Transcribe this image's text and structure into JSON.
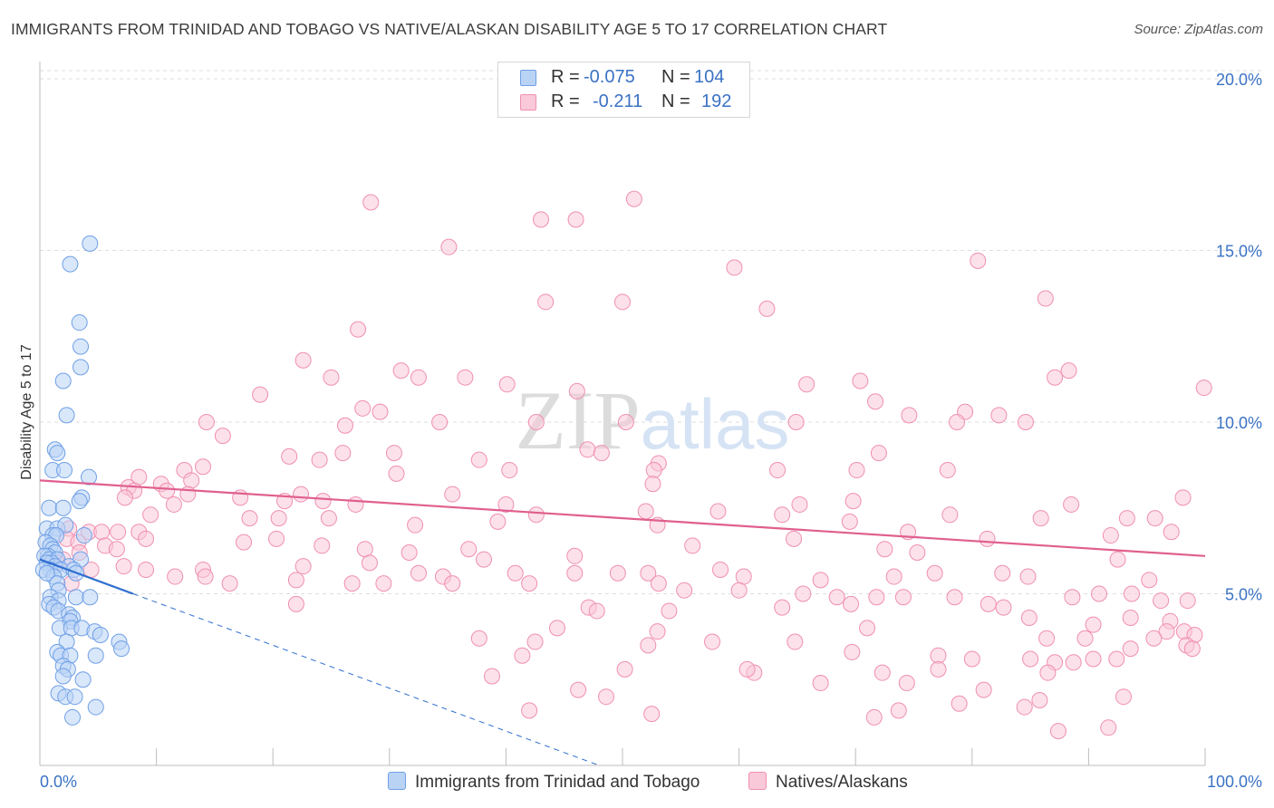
{
  "header": {
    "title": "IMMIGRANTS FROM TRINIDAD AND TOBAGO VS NATIVE/ALASKAN DISABILITY AGE 5 TO 17 CORRELATION CHART",
    "source": "Source: ZipAtlas.com"
  },
  "watermark": "ZIPatlas",
  "legend": {
    "rows": [
      {
        "r_label": "R =",
        "r_value": "-0.075",
        "n_label": "N =",
        "n_value": "104"
      },
      {
        "r_label": "R =",
        "r_value": "-0.211",
        "n_label": "N =",
        "n_value": "192"
      }
    ]
  },
  "bottom_legend": {
    "series1": "Immigrants from Trinidad and Tobago",
    "series2": "Natives/Alaskans"
  },
  "colors": {
    "blue": "#6fa0e6",
    "blue_fill": "#b9d3f5",
    "blue_line": "#2f6fd0",
    "pink": "#f08fb0",
    "pink_fill": "#f9c9d9",
    "pink_line": "#e05f8e",
    "tick_text": "#3a72c4",
    "grid": "#dedede"
  },
  "chart_data": {
    "type": "scatter",
    "title": "IMMIGRANTS FROM TRINIDAD AND TOBAGO VS NATIVE/ALASKAN DISABILITY AGE 5 TO 17 CORRELATION CHART",
    "xlabel": "",
    "ylabel": "Disability Age 5 to 17",
    "xlim": [
      0,
      100
    ],
    "ylim": [
      0,
      20.5
    ],
    "x_tick_labels": [
      "0.0%",
      "100.0%"
    ],
    "y_ticks": [
      5,
      10,
      15,
      20
    ],
    "y_tick_labels": [
      "5.0%",
      "10.0%",
      "15.0%",
      "20.0%"
    ],
    "grid": true,
    "legend_position": "top-center",
    "series": [
      {
        "name": "Immigrants from Trinidad and Tobago",
        "color": "#6fa0e6",
        "r": -0.075,
        "n": 104,
        "trend": {
          "x0": 0,
          "y0": 6.0,
          "x1": 8,
          "y1": 5.0,
          "dashed_to_x": 48,
          "dashed_to_y": 0.0
        },
        "points": [
          [
            4.3,
            15.2
          ],
          [
            2.6,
            14.6
          ],
          [
            3.4,
            12.9
          ],
          [
            3.5,
            12.2
          ],
          [
            3.5,
            11.6
          ],
          [
            2.0,
            11.2
          ],
          [
            2.3,
            10.2
          ],
          [
            1.3,
            9.2
          ],
          [
            1.5,
            9.1
          ],
          [
            1.1,
            8.6
          ],
          [
            2.1,
            8.6
          ],
          [
            4.2,
            8.4
          ],
          [
            3.6,
            7.8
          ],
          [
            3.4,
            7.7
          ],
          [
            0.8,
            7.5
          ],
          [
            2.0,
            7.5
          ],
          [
            0.6,
            6.9
          ],
          [
            1.5,
            6.9
          ],
          [
            2.2,
            7.0
          ],
          [
            1.1,
            6.7
          ],
          [
            1.4,
            6.7
          ],
          [
            3.8,
            6.7
          ],
          [
            0.5,
            6.5
          ],
          [
            0.9,
            6.4
          ],
          [
            1.1,
            6.3
          ],
          [
            1.3,
            6.2
          ],
          [
            0.7,
            6.1
          ],
          [
            0.4,
            6.1
          ],
          [
            0.8,
            6.0
          ],
          [
            1.5,
            6.0
          ],
          [
            3.5,
            6.0
          ],
          [
            1.0,
            5.9
          ],
          [
            0.6,
            5.9
          ],
          [
            2.5,
            5.8
          ],
          [
            1.3,
            5.8
          ],
          [
            0.9,
            5.7
          ],
          [
            0.3,
            5.7
          ],
          [
            1.8,
            5.7
          ],
          [
            2.9,
            5.7
          ],
          [
            3.1,
            5.6
          ],
          [
            1.2,
            5.5
          ],
          [
            0.6,
            5.6
          ],
          [
            1.5,
            5.3
          ],
          [
            1.6,
            5.1
          ],
          [
            0.9,
            4.9
          ],
          [
            3.1,
            4.9
          ],
          [
            4.3,
            4.9
          ],
          [
            1.6,
            4.8
          ],
          [
            0.8,
            4.7
          ],
          [
            1.2,
            4.6
          ],
          [
            1.6,
            4.5
          ],
          [
            2.5,
            4.4
          ],
          [
            2.8,
            4.3
          ],
          [
            2.6,
            4.2
          ],
          [
            1.7,
            4.0
          ],
          [
            2.7,
            4.0
          ],
          [
            3.6,
            4.0
          ],
          [
            4.7,
            3.9
          ],
          [
            5.2,
            3.8
          ],
          [
            2.3,
            3.6
          ],
          [
            6.8,
            3.6
          ],
          [
            7.0,
            3.4
          ],
          [
            1.5,
            3.3
          ],
          [
            1.8,
            3.2
          ],
          [
            2.6,
            3.2
          ],
          [
            4.8,
            3.2
          ],
          [
            2.0,
            2.9
          ],
          [
            2.4,
            2.8
          ],
          [
            2.0,
            2.6
          ],
          [
            3.7,
            2.5
          ],
          [
            1.6,
            2.1
          ],
          [
            2.2,
            2.0
          ],
          [
            3.0,
            2.0
          ],
          [
            4.8,
            1.7
          ],
          [
            2.8,
            1.4
          ]
        ]
      },
      {
        "name": "Natives/Alaskans",
        "color": "#f08fb0",
        "r": -0.211,
        "n": 192,
        "trend": {
          "x0": 0,
          "y0": 8.3,
          "x1": 100,
          "y1": 6.1
        },
        "points": [
          [
            28.4,
            16.4
          ],
          [
            51.0,
            16.5
          ],
          [
            43.0,
            15.9
          ],
          [
            46.0,
            15.9
          ],
          [
            35.1,
            15.1
          ],
          [
            59.6,
            14.5
          ],
          [
            80.5,
            14.7
          ],
          [
            43.4,
            13.5
          ],
          [
            50.0,
            13.5
          ],
          [
            86.3,
            13.6
          ],
          [
            62.4,
            13.3
          ],
          [
            27.3,
            12.7
          ],
          [
            22.6,
            11.8
          ],
          [
            31.0,
            11.5
          ],
          [
            25.0,
            11.3
          ],
          [
            32.5,
            11.3
          ],
          [
            36.5,
            11.3
          ],
          [
            40.1,
            11.1
          ],
          [
            65.8,
            11.1
          ],
          [
            70.4,
            11.2
          ],
          [
            88.3,
            11.5
          ],
          [
            87.1,
            11.3
          ],
          [
            99.9,
            11.0
          ],
          [
            46.1,
            10.9
          ],
          [
            18.9,
            10.8
          ],
          [
            71.7,
            10.6
          ],
          [
            27.7,
            10.4
          ],
          [
            29.2,
            10.3
          ],
          [
            74.6,
            10.2
          ],
          [
            79.4,
            10.3
          ],
          [
            82.3,
            10.2
          ],
          [
            14.3,
            10.0
          ],
          [
            26.2,
            9.9
          ],
          [
            34.3,
            10.0
          ],
          [
            42.6,
            10.0
          ],
          [
            50.3,
            10.0
          ],
          [
            64.9,
            10.0
          ],
          [
            78.7,
            10.0
          ],
          [
            84.6,
            10.0
          ],
          [
            15.7,
            9.6
          ],
          [
            47.0,
            9.2
          ],
          [
            48.2,
            9.1
          ],
          [
            26.0,
            9.1
          ],
          [
            30.4,
            9.1
          ],
          [
            72.0,
            9.1
          ],
          [
            21.4,
            9.0
          ],
          [
            24.0,
            8.9
          ],
          [
            37.7,
            8.9
          ],
          [
            53.1,
            8.8
          ],
          [
            14.0,
            8.7
          ],
          [
            12.4,
            8.6
          ],
          [
            30.6,
            8.5
          ],
          [
            40.3,
            8.6
          ],
          [
            52.7,
            8.6
          ],
          [
            63.3,
            8.6
          ],
          [
            70.1,
            8.6
          ],
          [
            77.9,
            8.6
          ],
          [
            8.5,
            8.4
          ],
          [
            10.4,
            8.2
          ],
          [
            13.0,
            8.3
          ],
          [
            7.6,
            8.1
          ],
          [
            8.1,
            8.0
          ],
          [
            10.9,
            8.0
          ],
          [
            12.7,
            7.9
          ],
          [
            22.4,
            7.9
          ],
          [
            35.4,
            7.9
          ],
          [
            52.6,
            8.2
          ],
          [
            7.3,
            7.8
          ],
          [
            17.2,
            7.8
          ],
          [
            11.5,
            7.6
          ],
          [
            21.0,
            7.7
          ],
          [
            24.3,
            7.7
          ],
          [
            27.1,
            7.6
          ],
          [
            40.0,
            7.6
          ],
          [
            52.0,
            7.4
          ],
          [
            58.2,
            7.4
          ],
          [
            65.2,
            7.6
          ],
          [
            69.8,
            7.7
          ],
          [
            88.5,
            7.6
          ],
          [
            98.1,
            7.8
          ],
          [
            9.5,
            7.3
          ],
          [
            18.0,
            7.2
          ],
          [
            20.5,
            7.2
          ],
          [
            24.8,
            7.2
          ],
          [
            42.6,
            7.3
          ],
          [
            63.7,
            7.3
          ],
          [
            69.5,
            7.1
          ],
          [
            78.1,
            7.3
          ],
          [
            85.9,
            7.2
          ],
          [
            93.3,
            7.2
          ],
          [
            95.7,
            7.2
          ],
          [
            32.2,
            7.0
          ],
          [
            39.3,
            7.1
          ],
          [
            53.0,
            7.0
          ],
          [
            74.5,
            6.8
          ],
          [
            64.7,
            6.6
          ],
          [
            81.3,
            6.6
          ],
          [
            91.9,
            6.7
          ],
          [
            97.1,
            6.8
          ],
          [
            2.5,
            6.9
          ],
          [
            4.2,
            6.8
          ],
          [
            5.3,
            6.8
          ],
          [
            6.7,
            6.8
          ],
          [
            8.5,
            6.8
          ],
          [
            9.1,
            6.6
          ],
          [
            2.3,
            6.6
          ],
          [
            3.3,
            6.5
          ],
          [
            5.6,
            6.4
          ],
          [
            6.6,
            6.3
          ],
          [
            17.5,
            6.5
          ],
          [
            20.3,
            6.6
          ],
          [
            24.2,
            6.4
          ],
          [
            27.9,
            6.3
          ],
          [
            31.7,
            6.2
          ],
          [
            36.8,
            6.3
          ],
          [
            45.9,
            6.1
          ],
          [
            38.1,
            6.0
          ],
          [
            56.0,
            6.4
          ],
          [
            72.5,
            6.3
          ],
          [
            75.3,
            6.2
          ],
          [
            92.5,
            6.0
          ],
          [
            3.4,
            6.2
          ],
          [
            2.0,
            6.0
          ],
          [
            1.5,
            5.9
          ],
          [
            4.4,
            5.7
          ],
          [
            7.2,
            5.8
          ],
          [
            9.1,
            5.7
          ],
          [
            14.0,
            5.7
          ],
          [
            22.6,
            5.8
          ],
          [
            28.3,
            5.9
          ],
          [
            32.5,
            5.6
          ],
          [
            34.6,
            5.5
          ],
          [
            40.8,
            5.6
          ],
          [
            45.9,
            5.6
          ],
          [
            49.6,
            5.6
          ],
          [
            52.2,
            5.6
          ],
          [
            58.4,
            5.7
          ],
          [
            60.4,
            5.5
          ],
          [
            67.0,
            5.4
          ],
          [
            73.3,
            5.5
          ],
          [
            76.8,
            5.6
          ],
          [
            82.6,
            5.6
          ],
          [
            84.8,
            5.5
          ],
          [
            95.2,
            5.4
          ],
          [
            11.6,
            5.5
          ],
          [
            14.2,
            5.5
          ],
          [
            2.7,
            5.3
          ],
          [
            16.3,
            5.3
          ],
          [
            22.0,
            5.4
          ],
          [
            29.5,
            5.3
          ],
          [
            26.8,
            5.3
          ],
          [
            35.4,
            5.3
          ],
          [
            42.0,
            5.3
          ],
          [
            53.1,
            5.3
          ],
          [
            55.3,
            5.1
          ],
          [
            60.0,
            5.1
          ],
          [
            65.5,
            5.0
          ],
          [
            68.4,
            4.9
          ],
          [
            71.8,
            4.9
          ],
          [
            74.1,
            4.9
          ],
          [
            78.5,
            4.9
          ],
          [
            81.4,
            4.7
          ],
          [
            88.6,
            4.9
          ],
          [
            90.9,
            5.0
          ],
          [
            93.7,
            5.0
          ],
          [
            96.2,
            4.8
          ],
          [
            98.5,
            4.8
          ],
          [
            22.0,
            4.7
          ],
          [
            47.1,
            4.6
          ],
          [
            54.0,
            4.5
          ],
          [
            63.7,
            4.6
          ],
          [
            69.6,
            4.7
          ],
          [
            82.7,
            4.6
          ],
          [
            84.9,
            4.3
          ],
          [
            93.6,
            4.3
          ],
          [
            97.0,
            4.2
          ],
          [
            90.4,
            4.1
          ],
          [
            53.0,
            3.9
          ],
          [
            71.0,
            4.0
          ],
          [
            86.4,
            3.7
          ],
          [
            89.7,
            3.7
          ],
          [
            96.7,
            3.9
          ],
          [
            98.2,
            3.9
          ],
          [
            99.1,
            3.8
          ],
          [
            44.4,
            4.0
          ],
          [
            47.8,
            4.5
          ],
          [
            37.7,
            3.7
          ],
          [
            42.5,
            3.6
          ],
          [
            52.2,
            3.5
          ],
          [
            57.7,
            3.6
          ],
          [
            64.8,
            3.6
          ],
          [
            69.7,
            3.3
          ],
          [
            77.1,
            3.2
          ],
          [
            80.0,
            3.1
          ],
          [
            85.0,
            3.1
          ],
          [
            87.1,
            3.0
          ],
          [
            90.4,
            3.1
          ],
          [
            93.6,
            3.4
          ],
          [
            95.6,
            3.7
          ],
          [
            98.4,
            3.5
          ],
          [
            41.4,
            3.2
          ],
          [
            38.8,
            2.6
          ],
          [
            50.2,
            2.8
          ],
          [
            61.3,
            2.7
          ],
          [
            72.3,
            2.7
          ],
          [
            77.1,
            2.8
          ],
          [
            86.5,
            2.7
          ],
          [
            88.7,
            3.0
          ],
          [
            92.4,
            3.1
          ],
          [
            98.9,
            3.4
          ],
          [
            42.0,
            1.6
          ],
          [
            52.5,
            1.5
          ],
          [
            71.6,
            1.4
          ],
          [
            73.7,
            1.6
          ],
          [
            78.9,
            1.8
          ],
          [
            85.8,
            1.9
          ],
          [
            93.0,
            2.0
          ],
          [
            84.5,
            1.7
          ],
          [
            91.7,
            1.1
          ],
          [
            87.4,
            1.0
          ],
          [
            48.6,
            2.0
          ],
          [
            46.2,
            2.2
          ],
          [
            81.0,
            2.2
          ],
          [
            74.4,
            2.4
          ],
          [
            60.7,
            2.8
          ],
          [
            67.0,
            2.4
          ]
        ]
      }
    ]
  }
}
